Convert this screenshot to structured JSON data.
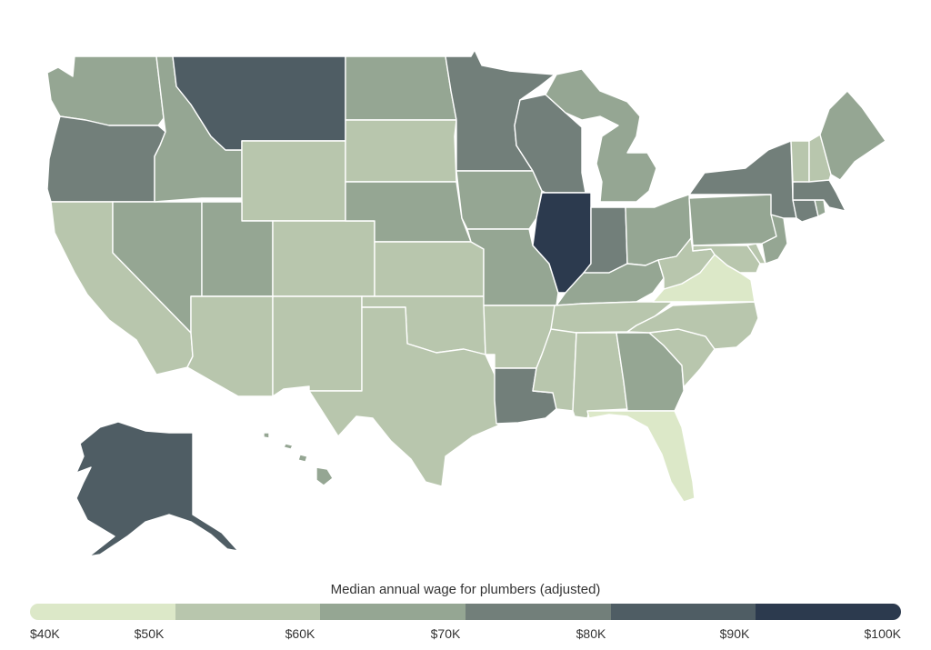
{
  "legend": {
    "title": "Median annual wage for plumbers (adjusted)",
    "ticks": [
      "$40K",
      "$50K",
      "$60K",
      "$70K",
      "$80K",
      "$90K",
      "$100K"
    ],
    "colors": [
      "#dce8c8",
      "#b8c6ad",
      "#95a693",
      "#727f7a",
      "#4f5d64",
      "#2c3a4e"
    ]
  },
  "states": {
    "WA": 3,
    "OR": 4,
    "CA": 2,
    "NV": 3,
    "ID": 3,
    "MT": 5,
    "WY": 2,
    "UT": 3,
    "AZ": 2,
    "CO": 2,
    "NM": 2,
    "ND": 3,
    "SD": 2,
    "NE": 3,
    "KS": 2,
    "OK": 2,
    "TX": 2,
    "MN": 4,
    "IA": 3,
    "MO": 3,
    "AR": 2,
    "LA": 4,
    "WI": 4,
    "IL": 6,
    "MI": 3,
    "IN": 4,
    "OH": 3,
    "KY": 3,
    "TN": 2,
    "MS": 2,
    "AL": 2,
    "GA": 3,
    "FL": 1,
    "SC": 2,
    "NC": 2,
    "VA": 1,
    "WV": 2,
    "MD": 2,
    "DE": 2,
    "PA": 3,
    "NJ": 3,
    "NY": 4,
    "CT": 4,
    "RI": 3,
    "MA": 4,
    "VT": 2,
    "NH": 2,
    "ME": 3,
    "AK": 5,
    "HI": 3
  }
}
